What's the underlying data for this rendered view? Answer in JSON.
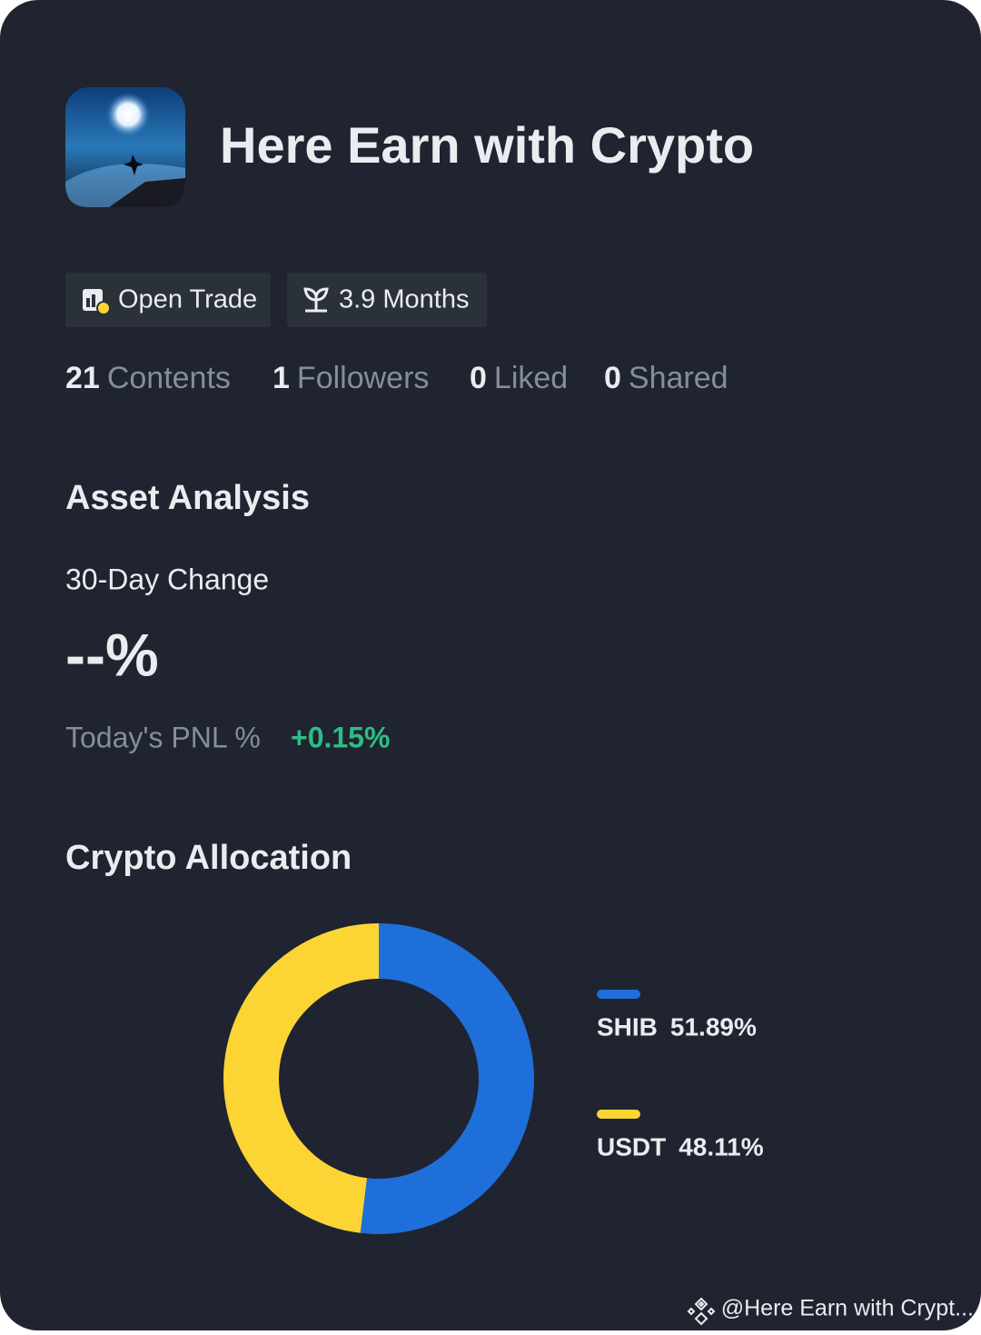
{
  "profile": {
    "name": "Here Earn with Crypto",
    "badges": [
      "Open Trade",
      "3.9 Months"
    ],
    "stats": [
      {
        "count": "21",
        "label": "Contents"
      },
      {
        "count": "1",
        "label": "Followers"
      },
      {
        "count": "0",
        "label": "Liked"
      },
      {
        "count": "0",
        "label": "Shared"
      }
    ]
  },
  "asset_analysis": {
    "title": "Asset Analysis",
    "change_label": "30-Day Change",
    "change_value": "--%",
    "pnl_label": "Today's PNL %",
    "pnl_value": "+0.15%"
  },
  "chart_data": {
    "type": "donut",
    "title": "Crypto Allocation",
    "categories": [
      "SHIB",
      "USDT"
    ],
    "values": [
      51.89,
      48.11
    ],
    "value_labels": [
      "51.89%",
      "48.11%"
    ],
    "colors": [
      "#1e6fd9",
      "#fcd535"
    ]
  },
  "footer": {
    "watermark": "@Here Earn with Crypt..."
  }
}
